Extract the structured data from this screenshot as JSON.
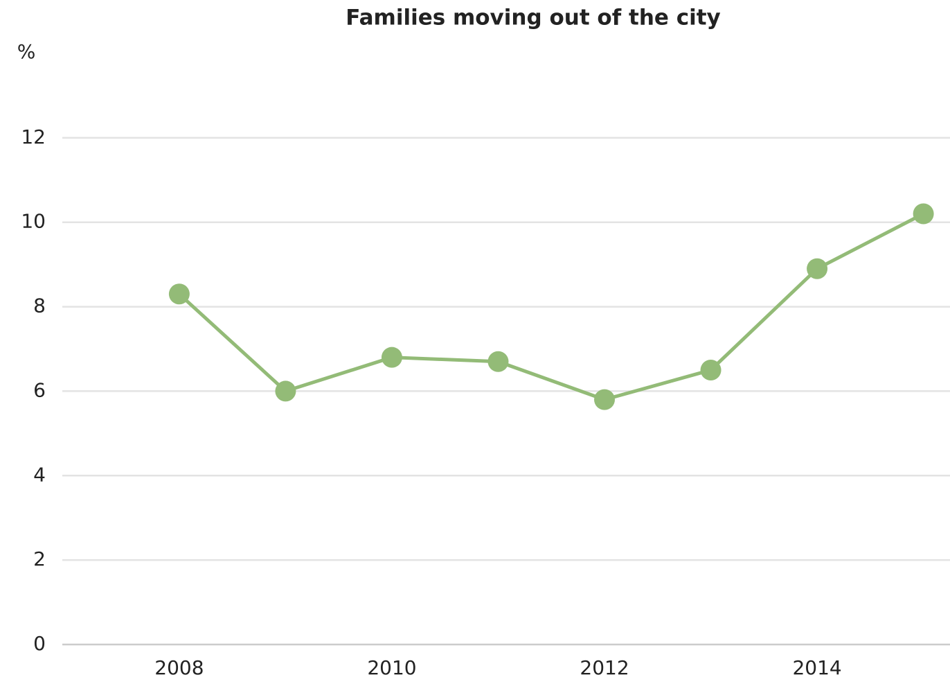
{
  "chart_data": {
    "type": "line",
    "title": "Families moving out of the city",
    "y_label": "%",
    "x": [
      2008,
      2009,
      2010,
      2011,
      2012,
      2013,
      2014,
      2015
    ],
    "series": [
      {
        "name": "Families moving out of the city",
        "color": "#93bb77",
        "values": [
          8.3,
          6.0,
          6.8,
          6.7,
          5.8,
          6.5,
          8.9,
          10.2
        ]
      }
    ],
    "xlim": [
      2006.9,
      2015.25
    ],
    "xticks": [
      2008,
      2010,
      2012,
      2014
    ],
    "ylim": [
      0,
      14
    ],
    "yticks": [
      0,
      2,
      4,
      6,
      8,
      10,
      12
    ],
    "grid": true
  }
}
